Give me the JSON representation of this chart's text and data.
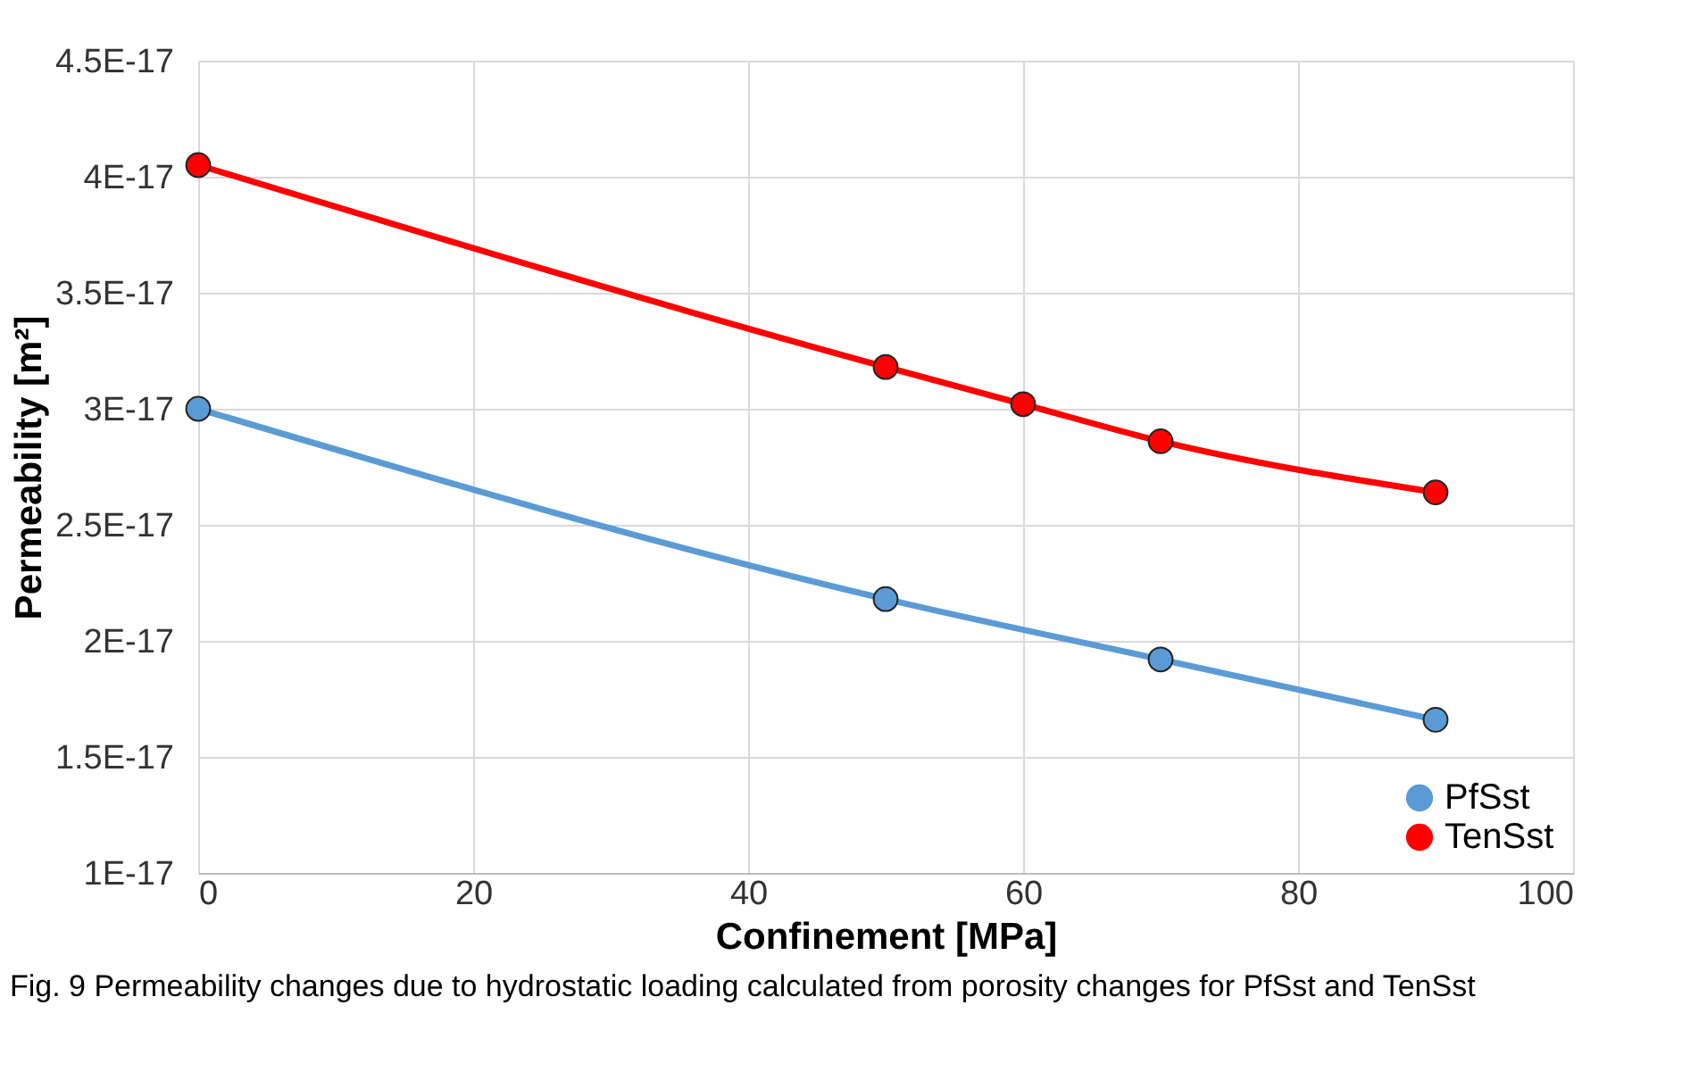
{
  "chart_data": {
    "type": "line",
    "xlabel": "Confinement [MPa]",
    "ylabel": "Permeability [m²]",
    "series": [
      {
        "name": "PfSst",
        "color": "#5b9bd5",
        "x": [
          0,
          50,
          70,
          90
        ],
        "values": [
          3e-17,
          2.18e-17,
          1.92e-17,
          1.66e-17
        ]
      },
      {
        "name": "TenSst",
        "color": "#ff0000",
        "x": [
          0,
          50,
          60,
          70,
          90
        ],
        "values": [
          4.05e-17,
          3.18e-17,
          3.02e-17,
          2.86e-17,
          2.64e-17
        ]
      }
    ],
    "xlim": [
      0,
      100
    ],
    "xticks": [
      0,
      20,
      40,
      60,
      80,
      100
    ],
    "ylim": [
      1e-17,
      4.5e-17
    ],
    "yticks": [
      {
        "value": 1e-17,
        "label": "1E-17"
      },
      {
        "value": 1.5e-17,
        "label": "1.5E-17"
      },
      {
        "value": 2e-17,
        "label": "2E-17"
      },
      {
        "value": 2.5e-17,
        "label": "2.5E-17"
      },
      {
        "value": 3e-17,
        "label": "3E-17"
      },
      {
        "value": 3.5e-17,
        "label": "3.5E-17"
      },
      {
        "value": 4e-17,
        "label": "4E-17"
      },
      {
        "value": 4.5e-17,
        "label": "4.5E-17"
      }
    ],
    "grid": true,
    "legend": "bottom right",
    "marker": "circle",
    "line_style": "solid",
    "annotations": [
      "Fig. 9  Permeability changes due to hydrostatic loading calculated from porosity changes for PfSst and TenSst"
    ]
  }
}
